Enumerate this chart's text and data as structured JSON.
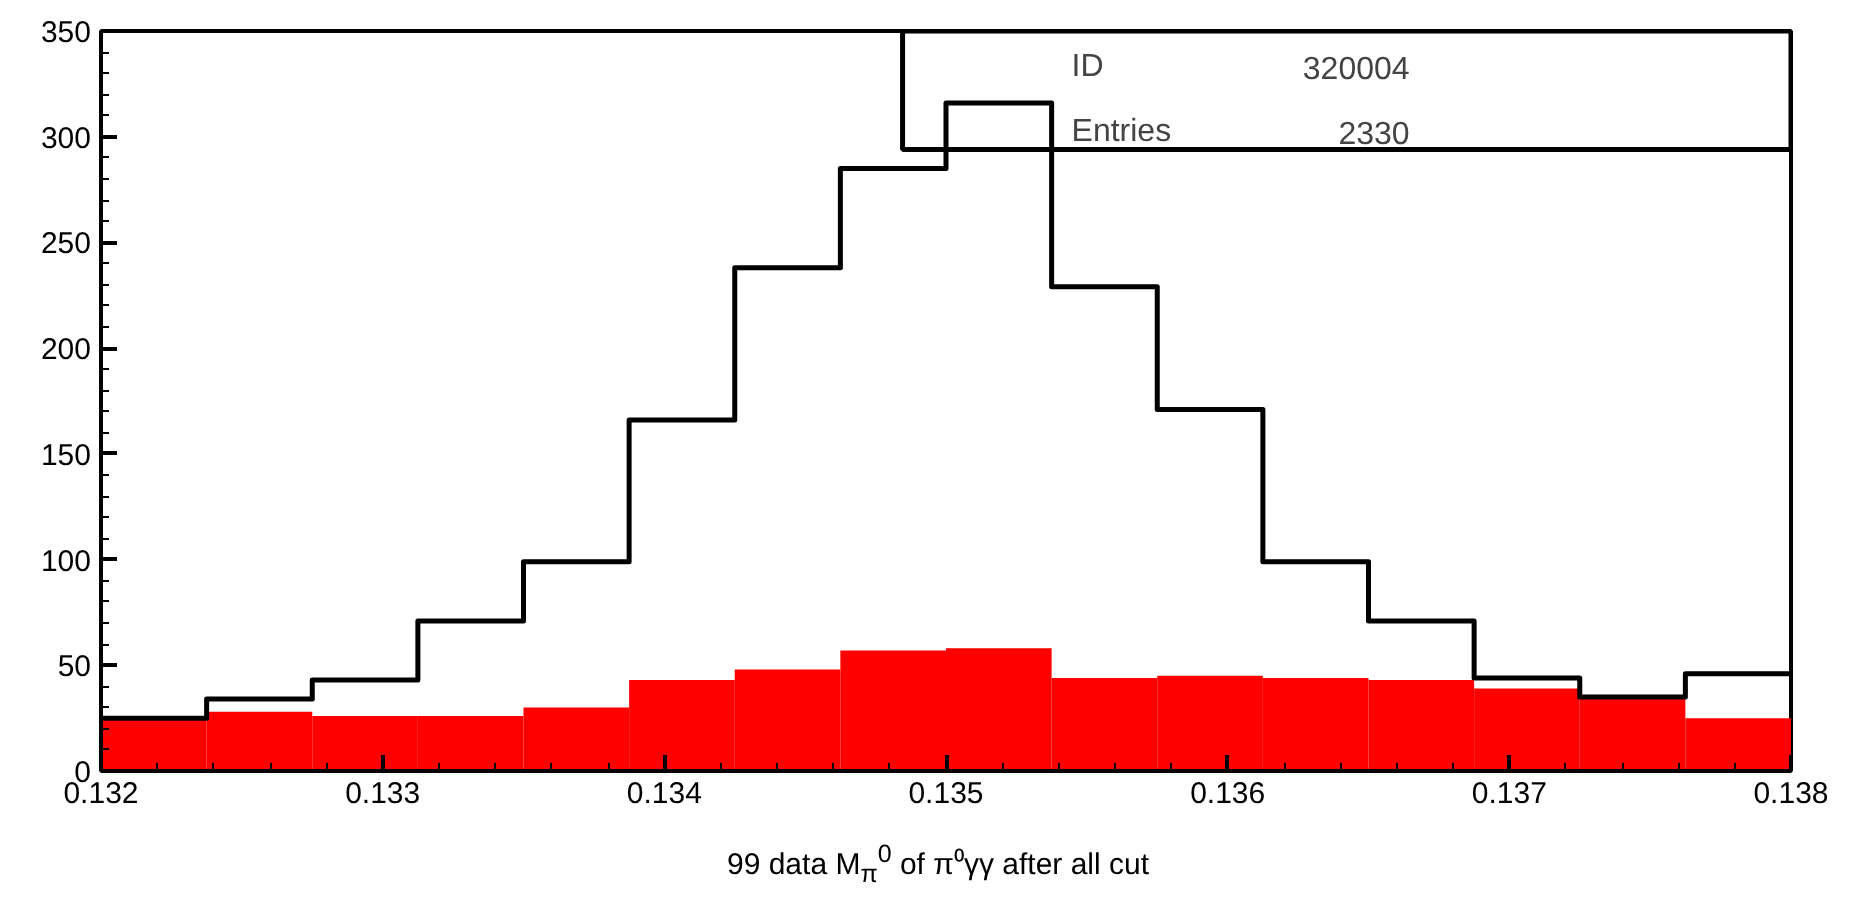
{
  "chart_data": {
    "type": "histogram",
    "xlabel": "99 data M$_{π}$$^{0}$ of π⁰γγ after all cut",
    "bins": [
      0.132,
      0.132375,
      0.13275,
      0.133125,
      0.1335,
      0.133875,
      0.13425,
      0.134625,
      0.135,
      0.135375,
      0.13575,
      0.136125,
      0.1365,
      0.136875,
      0.13725,
      0.137625,
      0.138
    ],
    "series": [
      {
        "color": "#ff0000",
        "values": [
          25,
          28,
          26,
          26,
          30,
          43,
          48,
          57,
          58,
          44,
          45,
          44,
          43,
          39,
          35,
          25
        ]
      },
      {
        "color": "#000000",
        "line_style": "solid",
        "values": [
          25,
          34,
          43,
          71,
          99,
          166,
          238,
          285,
          316,
          229,
          171,
          99,
          71,
          44,
          35,
          46
        ]
      }
    ],
    "annotations": [
      "ID 320004",
      "Entries 2330"
    ],
    "xlim": [
      0.132,
      0.138
    ],
    "xticks": [
      0.132,
      0.133,
      0.134,
      0.135,
      0.136,
      0.137,
      0.138
    ],
    "ylim": [
      0,
      350
    ],
    "yticks": [
      0,
      50,
      100,
      150,
      200,
      250,
      300,
      350
    ],
    "grid": false
  }
}
